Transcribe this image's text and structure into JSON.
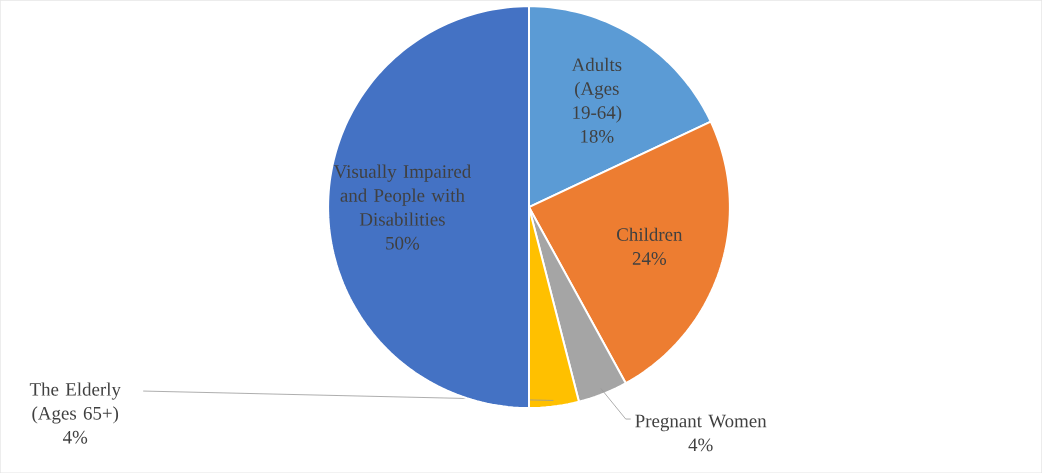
{
  "chart_data": {
    "type": "pie",
    "categories": [
      "Adults (Ages 19-64)",
      "Children",
      "Pregnant Women",
      "The Elderly (Ages 65+)",
      "Visually Impaired and People with Disabilities"
    ],
    "values": [
      18,
      24,
      4,
      4,
      50
    ],
    "colors": [
      "#5b9bd5",
      "#ed7d31",
      "#a5a5a5",
      "#ffc000",
      "#4472c4"
    ],
    "value_labels": [
      "18%",
      "24%",
      "4%",
      "4%",
      "50%"
    ]
  }
}
